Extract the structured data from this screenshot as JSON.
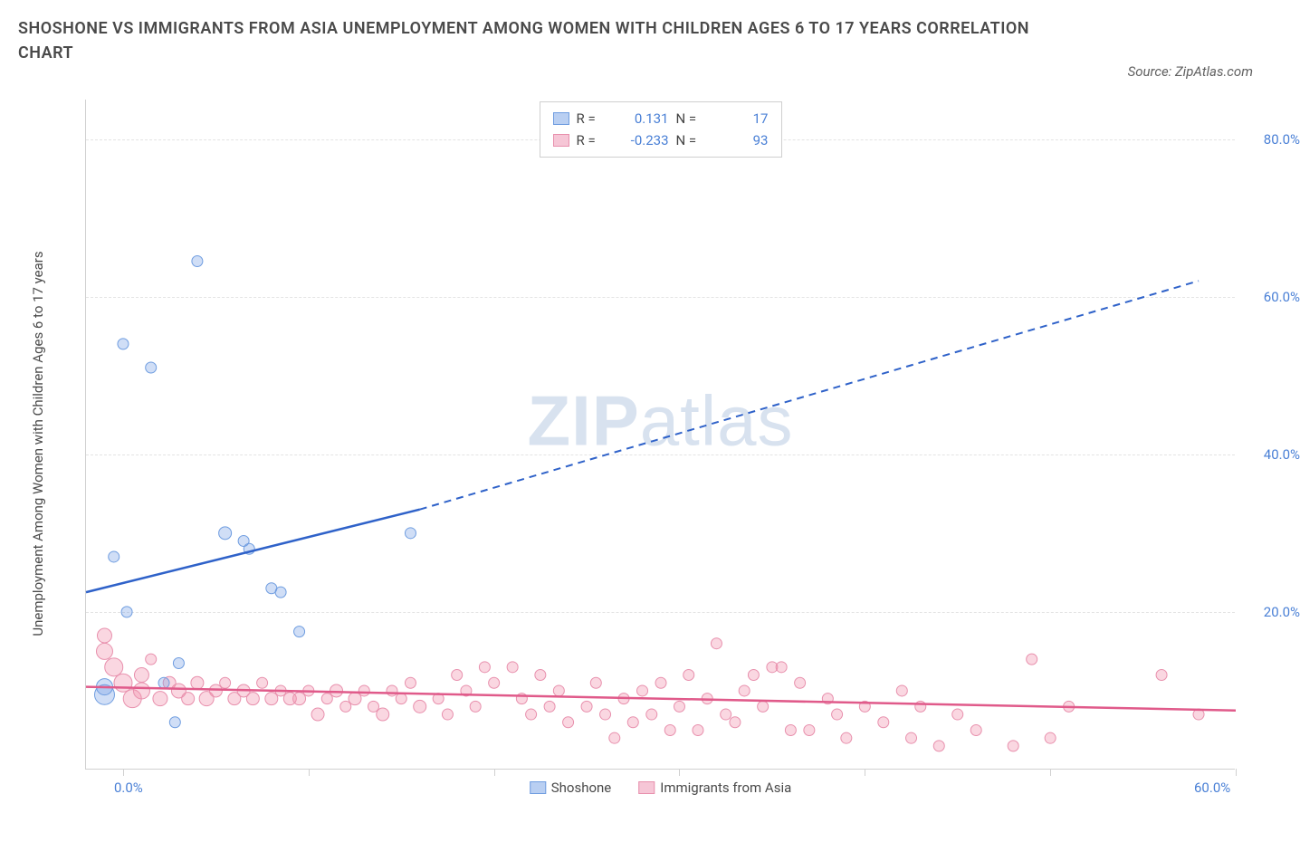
{
  "title": "SHOSHONE VS IMMIGRANTS FROM ASIA UNEMPLOYMENT AMONG WOMEN WITH CHILDREN AGES 6 TO 17 YEARS CORRELATION CHART",
  "source_label": "Source: ZipAtlas.com",
  "axis_title_y": "Unemployment Among Women with Children Ages 6 to 17 years",
  "watermark_a": "ZIP",
  "watermark_b": "atlas",
  "chart": {
    "type": "scatter",
    "xlim": [
      -2,
      60
    ],
    "ylim": [
      0,
      85
    ],
    "x_ticks": [
      0,
      10,
      20,
      30,
      40,
      50,
      60
    ],
    "x_tick_labels": {
      "0": "0.0%",
      "60": "60.0%"
    },
    "y_ticks": [
      20,
      40,
      60,
      80
    ],
    "y_tick_labels": {
      "20": "20.0%",
      "40": "40.0%",
      "60": "60.0%",
      "80": "80.0%"
    },
    "grid_color": "#e4e4e4",
    "background_color": "#ffffff",
    "axis_color": "#d0d0d0",
    "label_color": "#4a80d6",
    "label_fontsize": 15
  },
  "series": {
    "shoshone": {
      "label": "Shoshone",
      "color_fill": "rgba(120,160,230,0.35)",
      "color_stroke": "#6f9de0",
      "line_color": "#2f62c9",
      "legend_sw_fill": "#b9cff2",
      "legend_sw_border": "#6f9de0",
      "r_value": "0.131",
      "n_value": "17",
      "trend": {
        "x1": -2,
        "y1": 22.5,
        "x2_solid": 16,
        "y2_solid": 33,
        "x2_dash": 58,
        "y2_dash": 62
      },
      "points": [
        {
          "x": -1.0,
          "y": 9.5,
          "r": 11
        },
        {
          "x": -1.0,
          "y": 10.5,
          "r": 9
        },
        {
          "x": -0.5,
          "y": 27.0,
          "r": 6
        },
        {
          "x": 0.0,
          "y": 54.0,
          "r": 6
        },
        {
          "x": 0.2,
          "y": 20.0,
          "r": 6
        },
        {
          "x": 1.5,
          "y": 51.0,
          "r": 6
        },
        {
          "x": 2.2,
          "y": 11.0,
          "r": 6
        },
        {
          "x": 2.8,
          "y": 6.0,
          "r": 6
        },
        {
          "x": 3.0,
          "y": 13.5,
          "r": 6
        },
        {
          "x": 4.0,
          "y": 64.5,
          "r": 6
        },
        {
          "x": 5.5,
          "y": 30.0,
          "r": 7
        },
        {
          "x": 6.5,
          "y": 29.0,
          "r": 6
        },
        {
          "x": 6.8,
          "y": 28.0,
          "r": 6
        },
        {
          "x": 8.0,
          "y": 23.0,
          "r": 6
        },
        {
          "x": 8.5,
          "y": 22.5,
          "r": 6
        },
        {
          "x": 9.5,
          "y": 17.5,
          "r": 6
        },
        {
          "x": 15.5,
          "y": 30.0,
          "r": 6
        }
      ]
    },
    "asia": {
      "label": "Immigrants from Asia",
      "color_fill": "rgba(240,140,170,0.35)",
      "color_stroke": "#e890ad",
      "line_color": "#e05a8a",
      "legend_sw_fill": "#f6c6d6",
      "legend_sw_border": "#e890ad",
      "r_value": "-0.233",
      "n_value": "93",
      "trend": {
        "x1": -2,
        "y1": 10.5,
        "x2_solid": 60,
        "y2_solid": 7.5
      },
      "points": [
        {
          "x": -1,
          "y": 15,
          "r": 9
        },
        {
          "x": -1,
          "y": 17,
          "r": 8
        },
        {
          "x": -0.5,
          "y": 13,
          "r": 10
        },
        {
          "x": 0,
          "y": 11,
          "r": 10
        },
        {
          "x": 0.5,
          "y": 9,
          "r": 10
        },
        {
          "x": 1,
          "y": 12,
          "r": 8
        },
        {
          "x": 1,
          "y": 10,
          "r": 9
        },
        {
          "x": 1.5,
          "y": 14,
          "r": 6
        },
        {
          "x": 2,
          "y": 9,
          "r": 8
        },
        {
          "x": 2.5,
          "y": 11,
          "r": 7
        },
        {
          "x": 3,
          "y": 10,
          "r": 8
        },
        {
          "x": 3.5,
          "y": 9,
          "r": 7
        },
        {
          "x": 4,
          "y": 11,
          "r": 7
        },
        {
          "x": 4.5,
          "y": 9,
          "r": 8
        },
        {
          "x": 5,
          "y": 10,
          "r": 7
        },
        {
          "x": 5.5,
          "y": 11,
          "r": 6
        },
        {
          "x": 6,
          "y": 9,
          "r": 7
        },
        {
          "x": 6.5,
          "y": 10,
          "r": 7
        },
        {
          "x": 7,
          "y": 9,
          "r": 7
        },
        {
          "x": 7.5,
          "y": 11,
          "r": 6
        },
        {
          "x": 8,
          "y": 9,
          "r": 7
        },
        {
          "x": 8.5,
          "y": 10,
          "r": 6
        },
        {
          "x": 9,
          "y": 9,
          "r": 7
        },
        {
          "x": 9.5,
          "y": 9,
          "r": 7
        },
        {
          "x": 10,
          "y": 10,
          "r": 6
        },
        {
          "x": 10.5,
          "y": 7,
          "r": 7
        },
        {
          "x": 11,
          "y": 9,
          "r": 6
        },
        {
          "x": 11.5,
          "y": 10,
          "r": 7
        },
        {
          "x": 12,
          "y": 8,
          "r": 6
        },
        {
          "x": 12.5,
          "y": 9,
          "r": 7
        },
        {
          "x": 13,
          "y": 10,
          "r": 6
        },
        {
          "x": 13.5,
          "y": 8,
          "r": 6
        },
        {
          "x": 14,
          "y": 7,
          "r": 7
        },
        {
          "x": 14.5,
          "y": 10,
          "r": 6
        },
        {
          "x": 15,
          "y": 9,
          "r": 6
        },
        {
          "x": 15.5,
          "y": 11,
          "r": 6
        },
        {
          "x": 16,
          "y": 8,
          "r": 7
        },
        {
          "x": 17,
          "y": 9,
          "r": 6
        },
        {
          "x": 17.5,
          "y": 7,
          "r": 6
        },
        {
          "x": 18,
          "y": 12,
          "r": 6
        },
        {
          "x": 18.5,
          "y": 10,
          "r": 6
        },
        {
          "x": 19,
          "y": 8,
          "r": 6
        },
        {
          "x": 19.5,
          "y": 13,
          "r": 6
        },
        {
          "x": 20,
          "y": 11,
          "r": 6
        },
        {
          "x": 21,
          "y": 13,
          "r": 6
        },
        {
          "x": 21.5,
          "y": 9,
          "r": 6
        },
        {
          "x": 22,
          "y": 7,
          "r": 6
        },
        {
          "x": 22.5,
          "y": 12,
          "r": 6
        },
        {
          "x": 23,
          "y": 8,
          "r": 6
        },
        {
          "x": 23.5,
          "y": 10,
          "r": 6
        },
        {
          "x": 24,
          "y": 6,
          "r": 6
        },
        {
          "x": 25,
          "y": 8,
          "r": 6
        },
        {
          "x": 25.5,
          "y": 11,
          "r": 6
        },
        {
          "x": 26,
          "y": 7,
          "r": 6
        },
        {
          "x": 26.5,
          "y": 4,
          "r": 6
        },
        {
          "x": 27,
          "y": 9,
          "r": 6
        },
        {
          "x": 27.5,
          "y": 6,
          "r": 6
        },
        {
          "x": 28,
          "y": 10,
          "r": 6
        },
        {
          "x": 28.5,
          "y": 7,
          "r": 6
        },
        {
          "x": 29,
          "y": 11,
          "r": 6
        },
        {
          "x": 29.5,
          "y": 5,
          "r": 6
        },
        {
          "x": 30,
          "y": 8,
          "r": 6
        },
        {
          "x": 30.5,
          "y": 12,
          "r": 6
        },
        {
          "x": 31,
          "y": 5,
          "r": 6
        },
        {
          "x": 31.5,
          "y": 9,
          "r": 6
        },
        {
          "x": 32,
          "y": 16,
          "r": 6
        },
        {
          "x": 32.5,
          "y": 7,
          "r": 6
        },
        {
          "x": 33,
          "y": 6,
          "r": 6
        },
        {
          "x": 33.5,
          "y": 10,
          "r": 6
        },
        {
          "x": 34,
          "y": 12,
          "r": 6
        },
        {
          "x": 34.5,
          "y": 8,
          "r": 6
        },
        {
          "x": 35,
          "y": 13,
          "r": 6
        },
        {
          "x": 35.5,
          "y": 13,
          "r": 6
        },
        {
          "x": 36,
          "y": 5,
          "r": 6
        },
        {
          "x": 36.5,
          "y": 11,
          "r": 6
        },
        {
          "x": 37,
          "y": 5,
          "r": 6
        },
        {
          "x": 38,
          "y": 9,
          "r": 6
        },
        {
          "x": 38.5,
          "y": 7,
          "r": 6
        },
        {
          "x": 39,
          "y": 4,
          "r": 6
        },
        {
          "x": 40,
          "y": 8,
          "r": 6
        },
        {
          "x": 41,
          "y": 6,
          "r": 6
        },
        {
          "x": 42,
          "y": 10,
          "r": 6
        },
        {
          "x": 42.5,
          "y": 4,
          "r": 6
        },
        {
          "x": 43,
          "y": 8,
          "r": 6
        },
        {
          "x": 44,
          "y": 3,
          "r": 6
        },
        {
          "x": 45,
          "y": 7,
          "r": 6
        },
        {
          "x": 46,
          "y": 5,
          "r": 6
        },
        {
          "x": 48,
          "y": 3,
          "r": 6
        },
        {
          "x": 49,
          "y": 14,
          "r": 6
        },
        {
          "x": 50,
          "y": 4,
          "r": 6
        },
        {
          "x": 51,
          "y": 8,
          "r": 6
        },
        {
          "x": 56,
          "y": 12,
          "r": 6
        },
        {
          "x": 58,
          "y": 7,
          "r": 6
        }
      ]
    }
  },
  "legend_top_labels": {
    "R": "R =",
    "N": "N ="
  }
}
